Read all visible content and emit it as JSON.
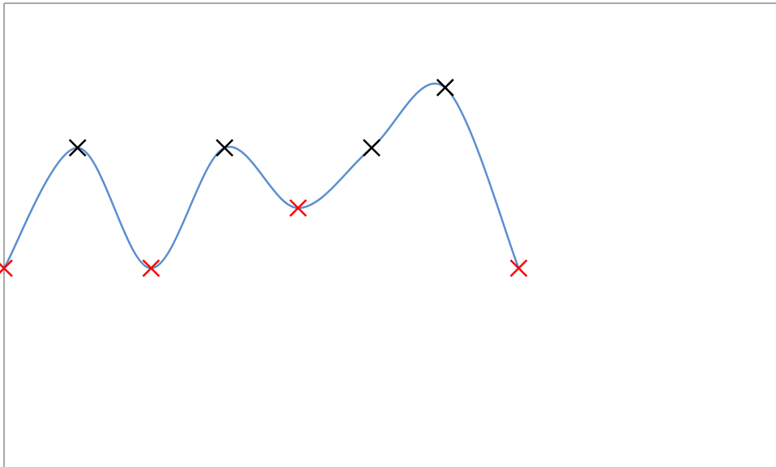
{
  "chart_data": {
    "type": "scatter",
    "title": "",
    "xlabel": "",
    "ylabel": "",
    "xlim": [
      0,
      10.5
    ],
    "ylim": [
      0,
      7.7
    ],
    "grid": false,
    "legend": "none",
    "colors": {
      "curve": "#5b8fd0",
      "min_marker": "#ff0000",
      "max_marker": "#000000",
      "axis": "#8c8c8c"
    },
    "series": [
      {
        "kind": "smooth-line",
        "x": [
          0,
          1,
          2,
          3,
          4,
          5,
          6,
          7
        ],
        "y": [
          3.3,
          5.3,
          3.3,
          5.3,
          4.3,
          5.3,
          6.3,
          3.3
        ]
      },
      {
        "kind": "markers",
        "marker": "x",
        "role": "local-minimum",
        "x": [
          0,
          2,
          4,
          7
        ],
        "y": [
          3.3,
          3.3,
          4.3,
          3.3
        ]
      },
      {
        "kind": "markers",
        "marker": "x",
        "role": "other-point",
        "x": [
          1,
          3,
          5,
          6
        ],
        "y": [
          5.3,
          5.3,
          5.3,
          6.3
        ]
      }
    ]
  }
}
